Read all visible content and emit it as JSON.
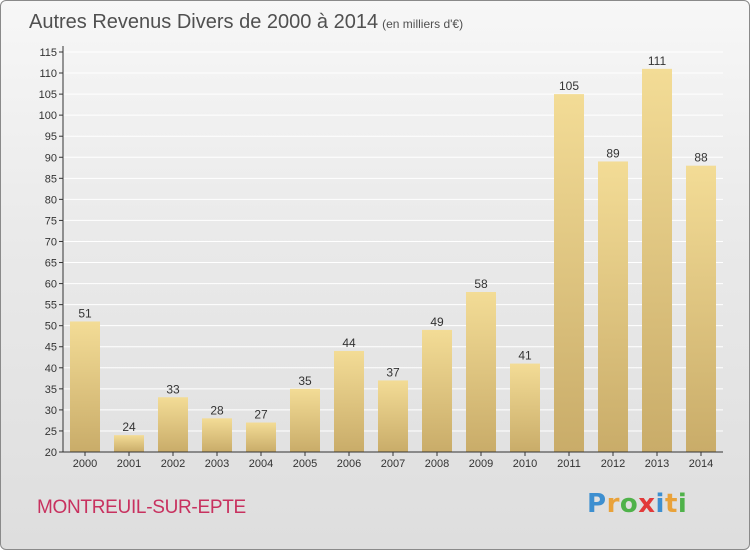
{
  "header": {
    "title": "Autres Revenus Divers de 2000 à 2014",
    "subtitle": "(en milliers d'€)"
  },
  "footer": {
    "commune": "MONTREUIL-SUR-EPTE",
    "logo_letters": [
      "P",
      "r",
      "o",
      "x",
      "i",
      "t",
      "i"
    ],
    "logo_colors": [
      "#3d8fd0",
      "#e9a23a",
      "#4fb24a",
      "#e23a3a",
      "#3d8fd0",
      "#e9a23a",
      "#4fb24a"
    ]
  },
  "chart_data": {
    "type": "bar",
    "title": "Autres Revenus Divers de 2000 à 2014",
    "subtitle": "(en milliers d'€)",
    "xlabel": "",
    "ylabel": "",
    "categories": [
      "2000",
      "2001",
      "2002",
      "2003",
      "2004",
      "2005",
      "2006",
      "2007",
      "2008",
      "2009",
      "2010",
      "2011",
      "2012",
      "2013",
      "2014"
    ],
    "values": [
      51,
      24,
      33,
      28,
      27,
      35,
      44,
      37,
      49,
      58,
      41,
      105,
      89,
      111,
      88
    ],
    "ylim": [
      20,
      115
    ],
    "yticks": [
      20,
      25,
      30,
      35,
      40,
      45,
      50,
      55,
      60,
      65,
      70,
      75,
      80,
      85,
      90,
      95,
      100,
      105,
      110,
      115
    ],
    "grid": true,
    "legend": "none",
    "colors": {
      "bar_light": "#f3dc96",
      "bar_dark": "#c9ac69",
      "grid": "#ffffff",
      "axis": "#333333"
    }
  }
}
